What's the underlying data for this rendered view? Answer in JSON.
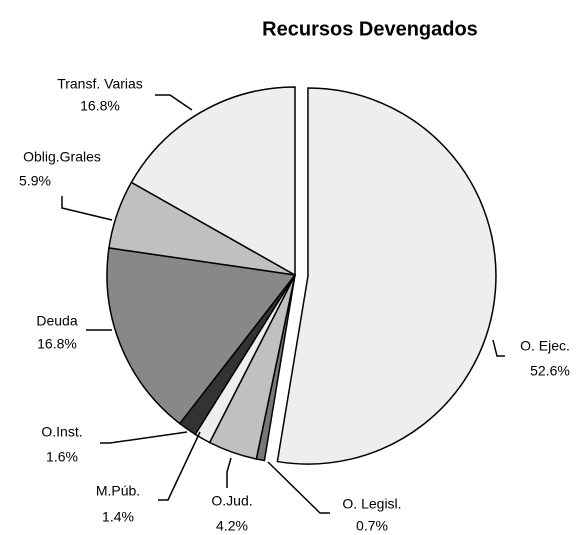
{
  "chart_data": {
    "type": "pie",
    "title": "Recursos Devengados",
    "categories": [
      "O. Ejec.",
      "O. Legisl.",
      "O.Jud.",
      "M.Púb.",
      "O.Inst.",
      "Deuda",
      "Oblig.Grales",
      "Transf. Varias"
    ],
    "values": [
      52.6,
      0.7,
      4.2,
      1.4,
      1.6,
      16.8,
      5.9,
      16.8
    ],
    "value_labels": [
      "52.6%",
      "0.7%",
      "4.2%",
      "1.4%",
      "1.6%",
      "16.8%",
      "5.9%",
      "16.8%"
    ],
    "colors": [
      "#eeeeee",
      "#777777",
      "#c0c0c0",
      "#eeeeee",
      "#333333",
      "#888888",
      "#c0c0c0",
      "#eeeeee"
    ],
    "exploded": [
      "O. Ejec."
    ]
  }
}
